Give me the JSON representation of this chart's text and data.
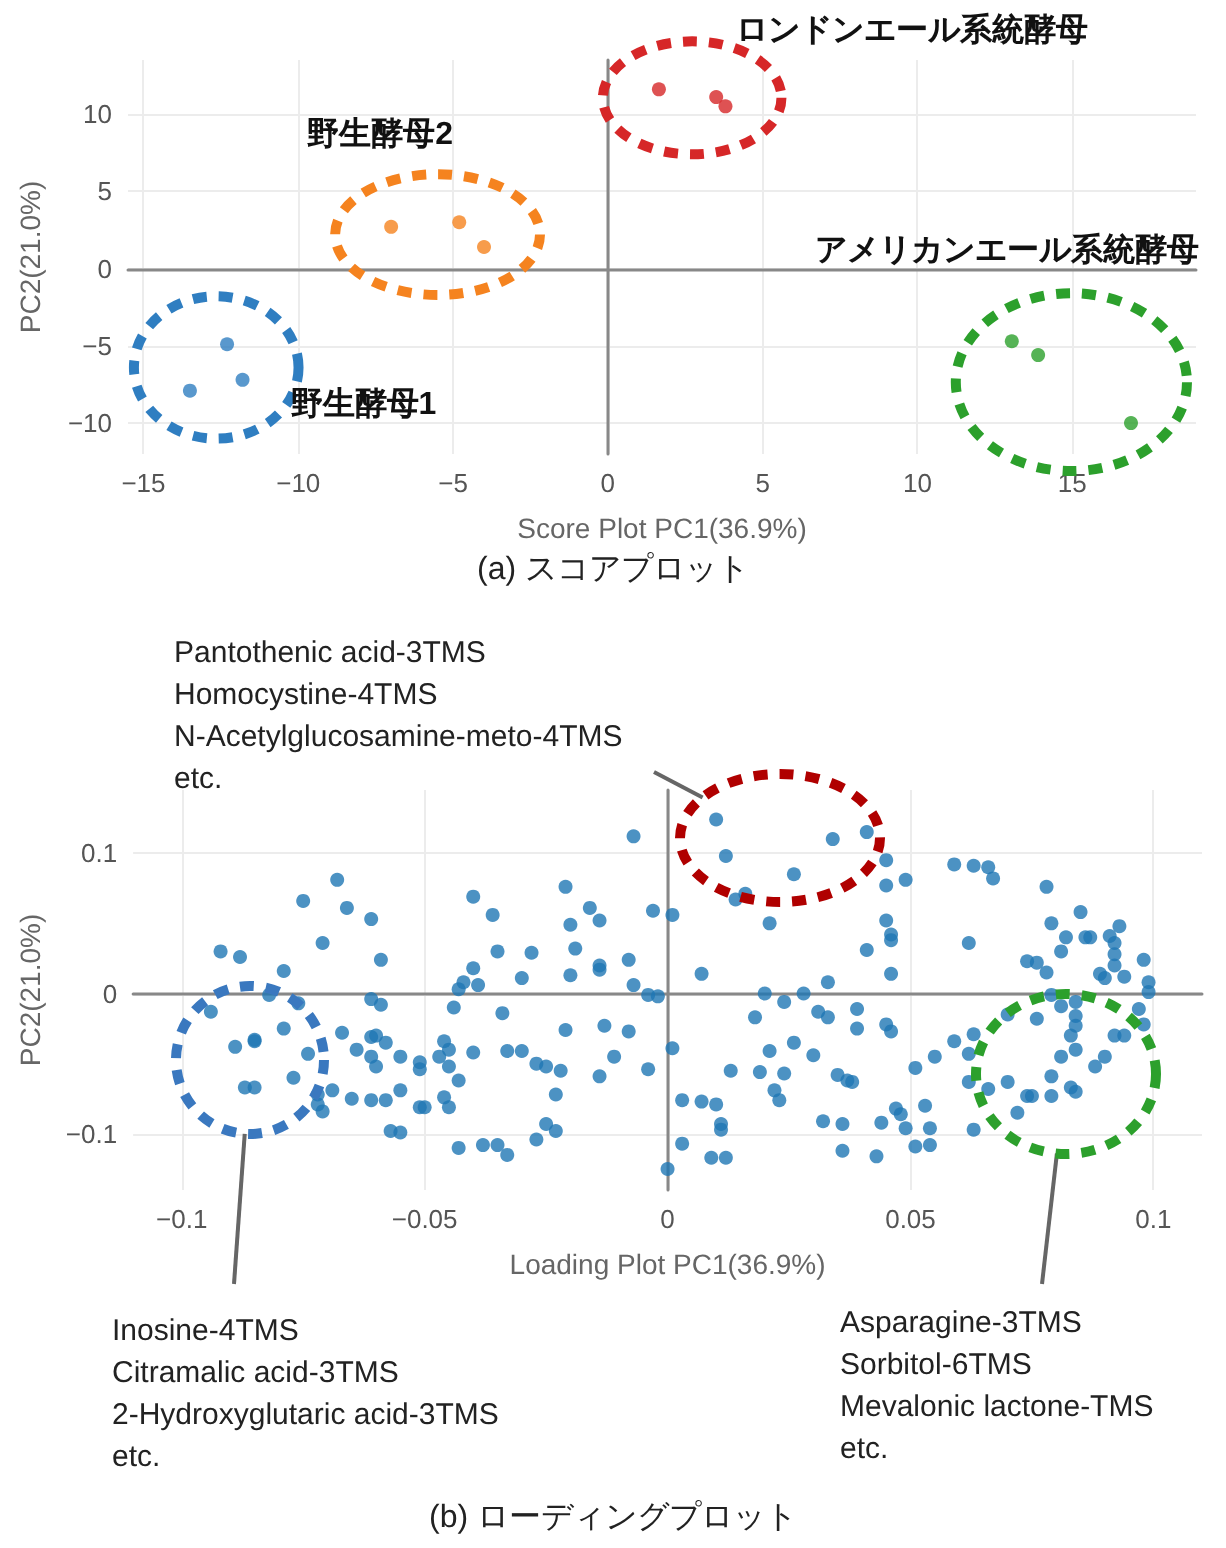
{
  "chart_data": [
    {
      "type": "scatter",
      "title": "(a) スコアプロット",
      "xlabel": "Score Plot PC1(36.9%)",
      "ylabel": "PC2(21.0%)",
      "xlim": [
        -15.5,
        19
      ],
      "ylim": [
        -12,
        13.5
      ],
      "xticks": [
        {
          "value": -15,
          "label": "−15"
        },
        {
          "value": -10,
          "label": "−10"
        },
        {
          "value": -5,
          "label": "−5"
        },
        0,
        5,
        10,
        15
      ],
      "yticks": [
        {
          "value": -10,
          "label": "−10"
        },
        {
          "value": -5,
          "label": "−5"
        },
        0,
        5,
        10
      ],
      "grid": true,
      "marker": "circle",
      "series": [
        {
          "name": "野生酵母1",
          "color": "#2f7ec1",
          "x": [
            -12.3,
            -11.8,
            -13.5
          ],
          "values": [
            -4.9,
            -7.2,
            -7.9
          ]
        },
        {
          "name": "野生酵母2",
          "color": "#f5831f",
          "x": [
            -7.0,
            -4.8,
            -4.0
          ],
          "values": [
            2.7,
            3.0,
            1.4
          ]
        },
        {
          "name": "ロンドンエール系統酵母",
          "color": "#d62728",
          "x": [
            1.65,
            3.5,
            3.8
          ],
          "values": [
            11.6,
            11.1,
            10.5
          ]
        },
        {
          "name": "アメリカンエール系統酵母",
          "color": "#2ca02c",
          "x": [
            13.05,
            13.9,
            16.9
          ],
          "values": [
            -4.7,
            -5.6,
            -10.0
          ]
        }
      ]
    },
    {
      "type": "scatter",
      "title": "(b) ローディングプロット",
      "xlabel": "Loading Plot PC1(36.9%)",
      "ylabel": "PC2(21.0%)",
      "xlim": [
        -0.11,
        0.11
      ],
      "ylim": [
        -0.14,
        0.145
      ],
      "xticks": [
        {
          "value": -0.1,
          "label": "−0.1"
        },
        {
          "value": -0.05,
          "label": "−0.05"
        },
        0,
        0.05,
        0.1
      ],
      "yticks": [
        {
          "value": -0.1,
          "label": "−0.1"
        },
        0,
        0.1
      ],
      "grid": true,
      "marker": "circle",
      "color": "#1f77b4",
      "annotations": [
        "Pantothenic acid-3TMS\nHomocystine-4TMS\nN-Acetylglucosamine-meto-4TMS\netc.",
        "Inosine-4TMS\nCitramalic acid-3TMS\n2-Hydroxyglutaric acid-3TMS\netc.",
        "Asparagine-3TMS\nSorbitol-6TMS\nMevalonic lactone-TMS\netc."
      ],
      "x": [
        -0.092,
        -0.088,
        -0.094,
        -0.089,
        -0.085,
        -0.085,
        -0.087,
        -0.085,
        -0.082,
        -0.079,
        -0.079,
        -0.076,
        -0.074,
        -0.077,
        -0.075,
        -0.071,
        -0.068,
        -0.066,
        -0.061,
        -0.059,
        -0.061,
        -0.059,
        -0.067,
        -0.064,
        -0.061,
        -0.06,
        -0.058,
        -0.061,
        -0.06,
        -0.055,
        -0.072,
        -0.069,
        -0.072,
        -0.071,
        -0.065,
        -0.061,
        -0.058,
        -0.055,
        -0.057,
        -0.055,
        -0.051,
        -0.051,
        -0.051,
        -0.05,
        -0.047,
        -0.046,
        -0.045,
        -0.046,
        -0.045,
        -0.043,
        -0.045,
        -0.044,
        -0.043,
        -0.042,
        -0.04,
        -0.039,
        -0.04,
        -0.036,
        -0.035,
        -0.034,
        -0.033,
        -0.03,
        -0.03,
        -0.028,
        -0.04,
        -0.043,
        -0.038,
        -0.035,
        -0.033,
        -0.027,
        -0.027,
        -0.025,
        -0.022,
        -0.023,
        -0.025,
        -0.023,
        -0.021,
        -0.02,
        -0.019,
        -0.02,
        -0.021,
        -0.016,
        -0.014,
        -0.014,
        -0.014,
        -0.013,
        -0.014,
        -0.011,
        -0.008,
        -0.008,
        -0.007,
        -0.007,
        -0.004,
        -0.003,
        -0.004,
        -0.002,
        0.01,
        0.034,
        0.041,
        0.045,
        0.012,
        0.014,
        0.016,
        0.026,
        0.045,
        0.049,
        0.001,
        0.021,
        0.041,
        0.045,
        0.046,
        0.046,
        0.007,
        0.046,
        0.059,
        0.063,
        0.066,
        0.067,
        0.062,
        0.078,
        0.079,
        0.082,
        0.085,
        0.086,
        0.087,
        0.093,
        0.091,
        0.092,
        0.092,
        0.098,
        0.092,
        0.089,
        0.09,
        0.094,
        0.099,
        0.099,
        0.074,
        0.076,
        0.078,
        0.081,
        0.02,
        0.024,
        0.028,
        0.033,
        0.018,
        0.031,
        0.033,
        0.039,
        0.039,
        0.045,
        0.046,
        0.079,
        0.081,
        0.084,
        0.084,
        0.084,
        0.083,
        0.084,
        0.092,
        0.094,
        0.098,
        0.097,
        0.07,
        0.063,
        0.059,
        0.062,
        0.055,
        0.051,
        0.001,
        0.013,
        0.019,
        0.021,
        0.024,
        0.026,
        0.03,
        0.035,
        0.037,
        0.038,
        0.022,
        0.023,
        0.003,
        0.007,
        0.01,
        0.011,
        0.011,
        0.032,
        0.036,
        0.044,
        0.047,
        0.048,
        0.049,
        0.053,
        0.054,
        0.054,
        0.051,
        0.063,
        0.062,
        0.066,
        0.07,
        0.074,
        0.072,
        0.075,
        0.079,
        0.079,
        0.083,
        0.084,
        0.088,
        0.09,
        0.076,
        0.036,
        0.043,
        0.009,
        0.012,
        0.003,
        0.081,
        0.0
      ],
      "values": [
        0.03,
        0.026,
        -0.013,
        -0.038,
        -0.034,
        -0.033,
        -0.067,
        -0.067,
        -0.001,
        0.016,
        -0.025,
        -0.007,
        -0.043,
        -0.06,
        0.066,
        0.036,
        0.081,
        0.061,
        0.053,
        0.024,
        -0.004,
        -0.008,
        -0.028,
        -0.04,
        -0.031,
        -0.03,
        -0.035,
        -0.045,
        -0.052,
        -0.045,
        -0.072,
        -0.069,
        -0.079,
        -0.084,
        -0.075,
        -0.076,
        -0.076,
        -0.069,
        -0.098,
        -0.099,
        -0.049,
        -0.054,
        -0.081,
        -0.081,
        -0.045,
        -0.034,
        -0.04,
        -0.074,
        -0.081,
        -0.062,
        -0.052,
        -0.01,
        0.003,
        0.008,
        0.018,
        0.006,
        0.069,
        0.056,
        0.03,
        -0.014,
        -0.041,
        -0.041,
        0.011,
        0.029,
        -0.042,
        -0.11,
        -0.108,
        -0.108,
        -0.115,
        -0.104,
        -0.05,
        -0.052,
        -0.055,
        -0.072,
        -0.093,
        -0.098,
        0.076,
        0.049,
        0.032,
        0.013,
        -0.026,
        0.061,
        0.02,
        0.017,
        0.052,
        -0.023,
        -0.059,
        -0.045,
        -0.027,
        0.024,
        0.112,
        0.006,
        -0.054,
        0.059,
        -0.001,
        -0.002,
        0.124,
        0.11,
        0.115,
        0.095,
        0.098,
        0.067,
        0.071,
        0.085,
        0.077,
        0.081,
        0.056,
        0.05,
        0.031,
        0.052,
        0.042,
        0.038,
        0.014,
        0.014,
        0.092,
        0.091,
        0.09,
        0.082,
        0.036,
        0.076,
        0.05,
        0.04,
        0.058,
        0.04,
        0.04,
        0.048,
        0.041,
        0.036,
        0.028,
        0.024,
        0.02,
        0.014,
        0.011,
        0.012,
        0.008,
        0.001,
        0.023,
        0.022,
        0.015,
        0.03,
        0.0,
        -0.006,
        0.0,
        0.008,
        -0.017,
        -0.013,
        -0.017,
        -0.011,
        -0.025,
        -0.022,
        -0.027,
        -0.001,
        -0.009,
        -0.006,
        -0.016,
        -0.023,
        -0.03,
        -0.04,
        -0.03,
        -0.03,
        -0.022,
        -0.011,
        -0.015,
        -0.029,
        -0.034,
        -0.043,
        -0.045,
        -0.053,
        -0.039,
        -0.055,
        -0.056,
        -0.041,
        -0.057,
        -0.035,
        -0.044,
        -0.058,
        -0.062,
        -0.063,
        -0.069,
        -0.076,
        -0.076,
        -0.077,
        -0.079,
        -0.093,
        -0.097,
        -0.091,
        -0.093,
        -0.092,
        -0.082,
        -0.086,
        -0.096,
        -0.08,
        -0.096,
        -0.108,
        -0.109,
        -0.097,
        -0.063,
        -0.068,
        -0.063,
        -0.073,
        -0.085,
        -0.073,
        -0.059,
        -0.073,
        -0.067,
        -0.07,
        -0.052,
        -0.045,
        -0.018,
        -0.112,
        -0.116,
        -0.117,
        -0.117,
        -0.107,
        -0.045,
        -0.125
      ]
    }
  ]
}
